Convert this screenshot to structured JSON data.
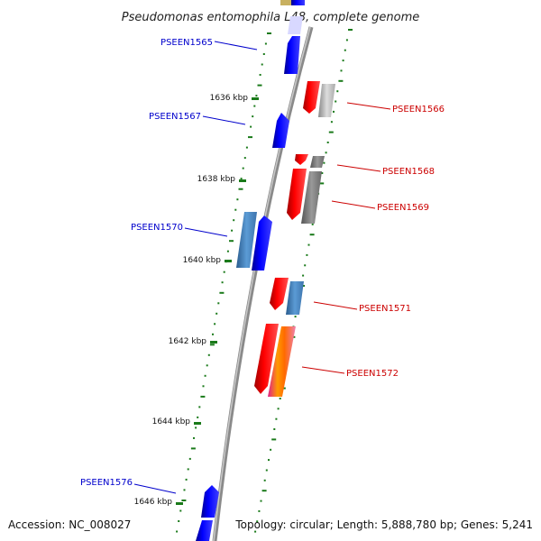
{
  "title": "Pseudomonas entomophila L48, complete genome",
  "accession": "Accession: NC_008027",
  "topology": "Topology: circular; Length: 5,888,780 bp; Genes: 5,241",
  "scale_labels": [
    "1636 kbp",
    "1638 kbp",
    "1640 kbp",
    "1642 kbp",
    "1644 kbp",
    "1646 kbp"
  ],
  "gene_labels": [
    {
      "name": "PSEEN1565",
      "side": "left",
      "color": "#0000cc"
    },
    {
      "name": "PSEEN1566",
      "side": "right",
      "color": "#cc0000"
    },
    {
      "name": "PSEEN1567",
      "side": "left",
      "color": "#0000cc"
    },
    {
      "name": "PSEEN1568",
      "side": "right",
      "color": "#cc0000"
    },
    {
      "name": "PSEEN1569",
      "side": "right",
      "color": "#cc0000"
    },
    {
      "name": "PSEEN1570",
      "side": "left",
      "color": "#0000cc"
    },
    {
      "name": "PSEEN1571",
      "side": "right",
      "color": "#cc0000"
    },
    {
      "name": "PSEEN1572",
      "side": "right",
      "color": "#cc0000"
    },
    {
      "name": "PSEEN1576",
      "side": "left",
      "color": "#0000cc"
    }
  ],
  "colors": {
    "forward_gene": "#0000ff",
    "reverse_gene": "#ff0000",
    "cds_blue": "#4a86c8",
    "cds_gray": "#808080",
    "tick": "#1a7a1a",
    "backbone": "#8a8a8a"
  }
}
